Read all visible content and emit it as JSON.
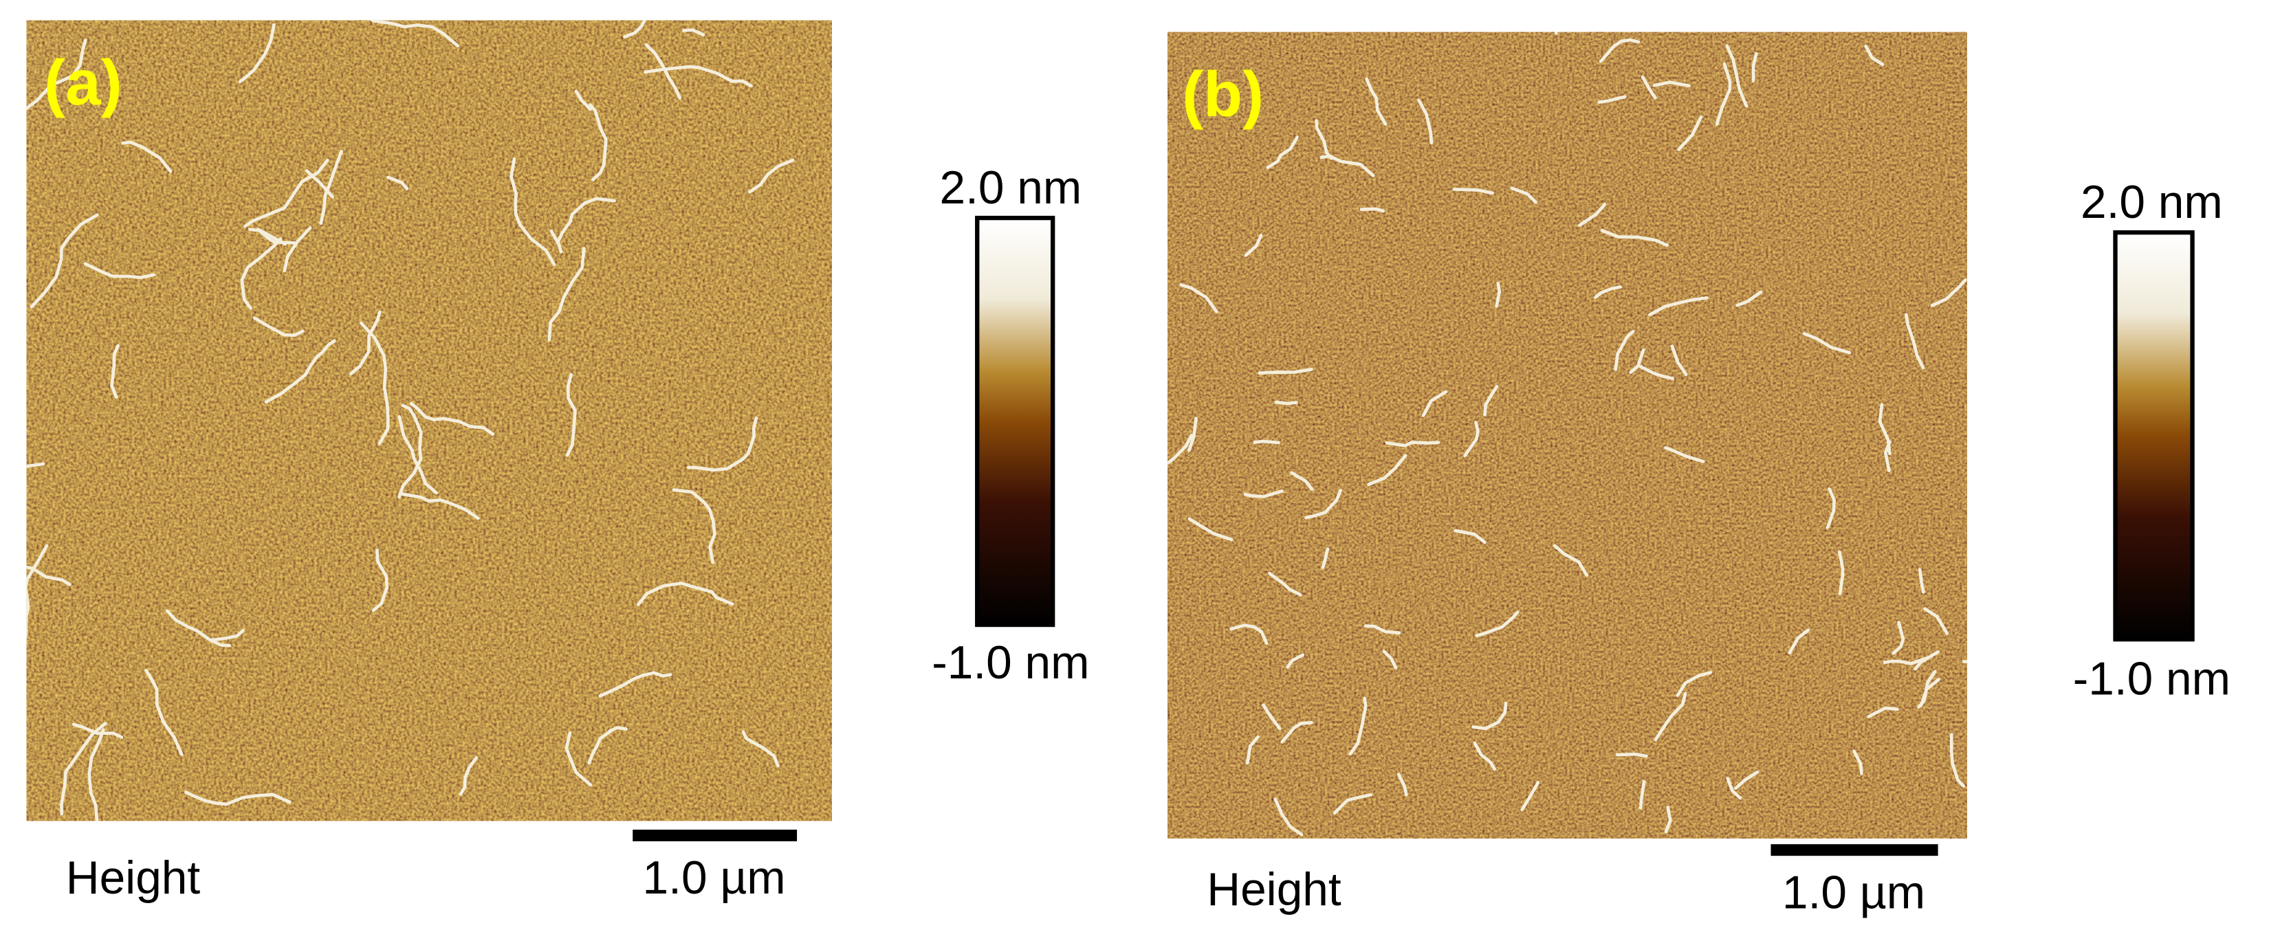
{
  "panels": [
    {
      "label": "(a)",
      "height_label": "Height",
      "scale_bar": "1.0 µm",
      "colorbar_max": "2.0 nm",
      "colorbar_min": "-1.0 nm"
    },
    {
      "label": "(b)",
      "height_label": "Height",
      "scale_bar": "1.0 µm",
      "colorbar_max": "2.0 nm",
      "colorbar_min": "-1.0 nm"
    }
  ]
}
